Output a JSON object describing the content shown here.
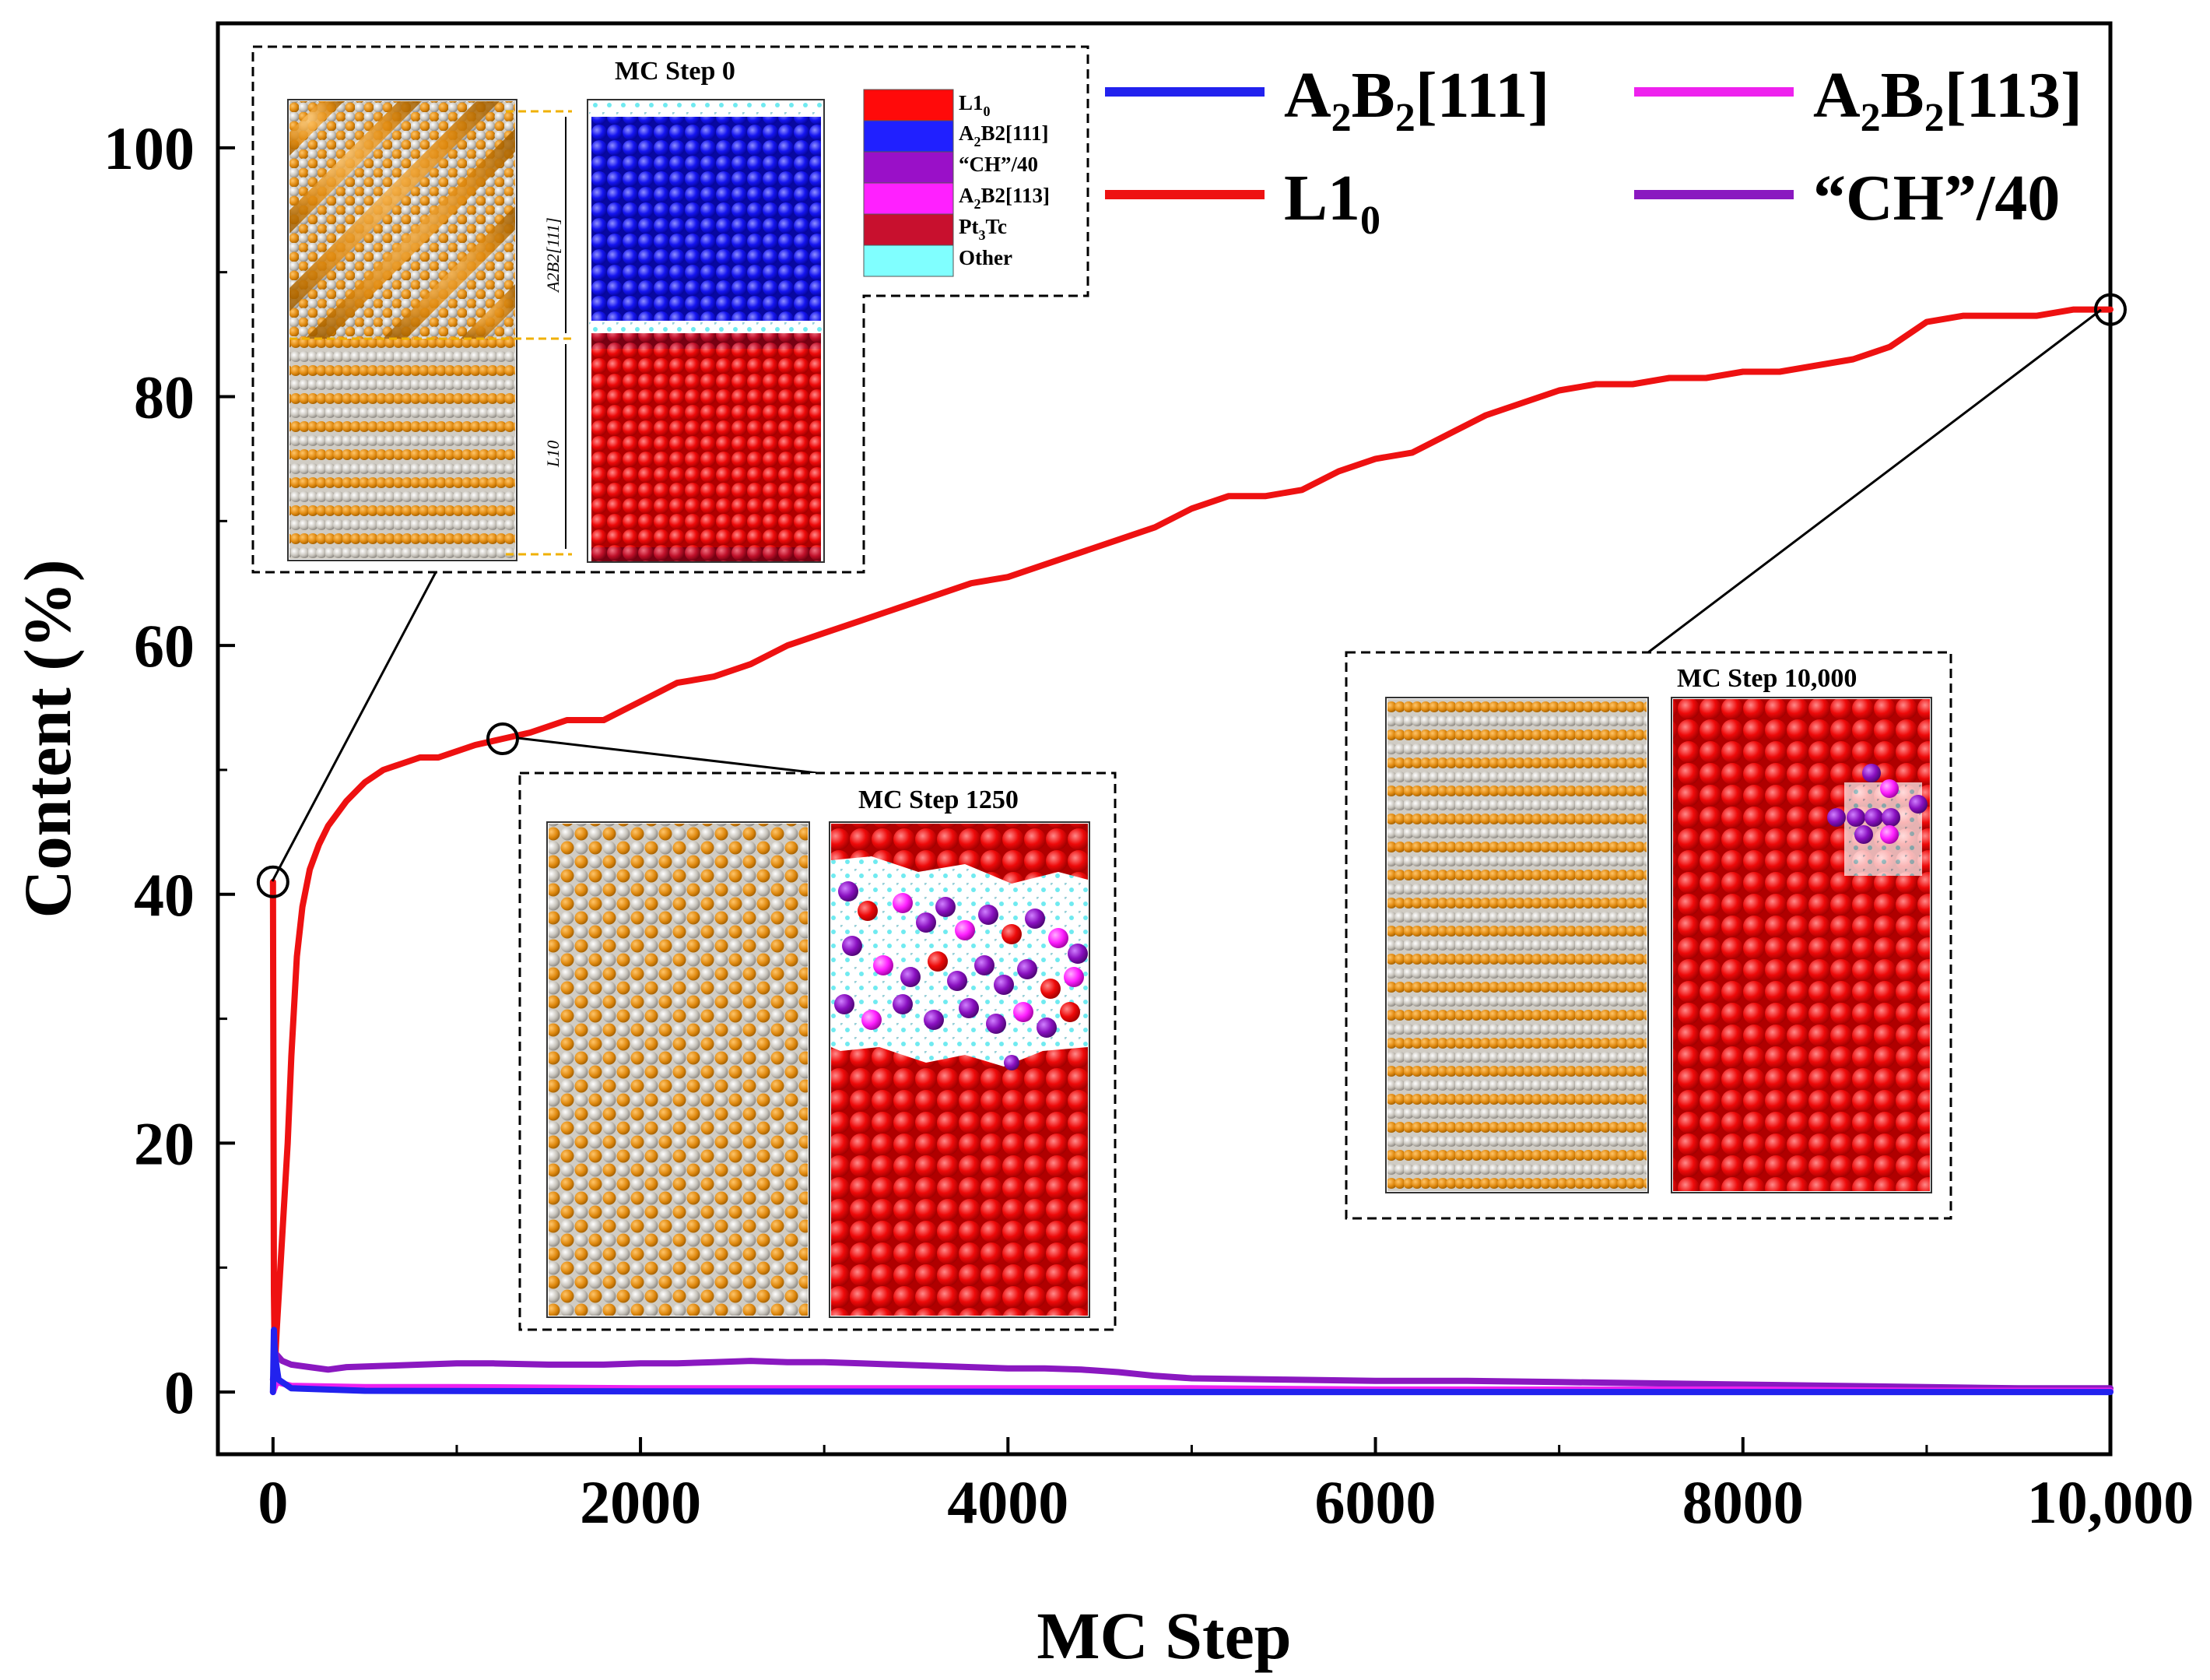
{
  "chart_data": {
    "type": "line",
    "xlabel": "MC Step",
    "ylabel": "Content (%)",
    "xlim": [
      -300,
      10000
    ],
    "ylim": [
      -5,
      110
    ],
    "xticks": [
      0,
      2000,
      4000,
      6000,
      8000,
      10000
    ],
    "xtick_labels": [
      "0",
      "2000",
      "4000",
      "6000",
      "8000",
      "10,000"
    ],
    "yticks": [
      0,
      20,
      40,
      60,
      80,
      100
    ],
    "ytick_labels": [
      "0",
      "20",
      "40",
      "60",
      "80",
      "100"
    ],
    "legend": [
      {
        "base": "A",
        "sub1": "2",
        "mid": "B",
        "sub2": "2",
        "tail": "[111]",
        "color": "#2222ee"
      },
      {
        "base": "A",
        "sub1": "2",
        "mid": "B",
        "sub2": "2",
        "tail": "[113]",
        "color": "#ee22ee"
      },
      {
        "base": "L1",
        "sub1": "0",
        "mid": "",
        "sub2": "",
        "tail": "",
        "color": "#ee1111"
      },
      {
        "base": "“CH”/40",
        "sub1": "",
        "mid": "",
        "sub2": "",
        "tail": "",
        "color": "#8a18c0"
      }
    ],
    "series": [
      {
        "name": "L10",
        "color": "#ee1111",
        "x": [
          0,
          5,
          10,
          20,
          40,
          60,
          80,
          100,
          130,
          160,
          200,
          250,
          300,
          400,
          500,
          600,
          700,
          800,
          900,
          1000,
          1100,
          1250,
          1400,
          1600,
          1800,
          2000,
          2200,
          2400,
          2600,
          2800,
          3000,
          3200,
          3400,
          3600,
          3800,
          4000,
          4200,
          4400,
          4600,
          4800,
          5000,
          5200,
          5400,
          5600,
          5800,
          6000,
          6200,
          6400,
          6600,
          6800,
          7000,
          7200,
          7400,
          7600,
          7800,
          8000,
          8200,
          8400,
          8600,
          8800,
          9000,
          9200,
          9400,
          9600,
          9800,
          10000
        ],
        "values": [
          41,
          8,
          2,
          5,
          10,
          15,
          20,
          27,
          35,
          39,
          42,
          44,
          45.5,
          47.5,
          49,
          50,
          50.5,
          51,
          51,
          51.5,
          52,
          52.5,
          53,
          54,
          54,
          55.5,
          57,
          57.5,
          58.5,
          60,
          61,
          62,
          63,
          64,
          65,
          65.5,
          66.5,
          67.5,
          68.5,
          69.5,
          71,
          72,
          72,
          72.5,
          74,
          75,
          75.5,
          77,
          78.5,
          79.5,
          80.5,
          81,
          81,
          81.5,
          81.5,
          82,
          82,
          82.5,
          83,
          84,
          86,
          86.5,
          86.5,
          86.5,
          87,
          87
        ]
      },
      {
        "name": "CH/40",
        "color": "#8a18c0",
        "x": [
          0,
          20,
          50,
          100,
          200,
          300,
          400,
          600,
          800,
          1000,
          1200,
          1500,
          1800,
          2000,
          2200,
          2400,
          2600,
          2800,
          3000,
          3200,
          3400,
          3600,
          3800,
          4000,
          4200,
          4400,
          4600,
          4800,
          5000,
          5500,
          6000,
          6500,
          7000,
          7500,
          8000,
          8500,
          9000,
          9500,
          10000
        ],
        "values": [
          1,
          3,
          2.5,
          2.2,
          2,
          1.8,
          2,
          2.1,
          2.2,
          2.3,
          2.3,
          2.2,
          2.2,
          2.3,
          2.3,
          2.4,
          2.5,
          2.4,
          2.4,
          2.3,
          2.2,
          2.1,
          2,
          1.9,
          1.9,
          1.8,
          1.6,
          1.3,
          1.1,
          1,
          0.9,
          0.9,
          0.8,
          0.7,
          0.6,
          0.5,
          0.4,
          0.3,
          0.3
        ]
      },
      {
        "name": "A2B2[113]",
        "color": "#ee22ee",
        "x": [
          0,
          20,
          100,
          500,
          1000,
          2000,
          3000,
          4000,
          5000,
          6000,
          7000,
          8000,
          9000,
          10000
        ],
        "values": [
          0,
          0.8,
          0.5,
          0.4,
          0.4,
          0.3,
          0.3,
          0.3,
          0.3,
          0.2,
          0.2,
          0.2,
          0.1,
          0.1
        ]
      },
      {
        "name": "A2B2[111]",
        "color": "#2222ee",
        "x": [
          0,
          5,
          10,
          30,
          100,
          500,
          2000,
          5000,
          10000
        ],
        "values": [
          0,
          5,
          3,
          1,
          0.3,
          0.1,
          0.05,
          0,
          0
        ]
      }
    ],
    "markers": [
      {
        "x": 0,
        "y": 41
      },
      {
        "x": 1250,
        "y": 52.5
      },
      {
        "x": 10000,
        "y": 87
      }
    ]
  },
  "insets": {
    "step0": {
      "title": "MC Step 0",
      "label_top": "A2B2[111]",
      "label_bottom": "L10"
    },
    "step1250": {
      "title": "MC Step 1250"
    },
    "step10000": {
      "title": "MC Step 10,000"
    },
    "phase_legend": [
      {
        "label": "L1",
        "sub": "0",
        "tail": "",
        "color": "#ff0a0a"
      },
      {
        "label": "A",
        "sub": "2",
        "tail": "B2[111]",
        "color": "#2020ff"
      },
      {
        "label": "“CH”/40",
        "sub": "",
        "tail": "",
        "color": "#9a10c8"
      },
      {
        "label": "A",
        "sub": "2",
        "tail": "B2[113]",
        "color": "#ff20ff"
      },
      {
        "label": "Pt",
        "sub": "3",
        "tail": "Tc",
        "color": "#c8102e"
      },
      {
        "label": "Other",
        "sub": "",
        "tail": "",
        "color": "#80ffff"
      }
    ]
  }
}
